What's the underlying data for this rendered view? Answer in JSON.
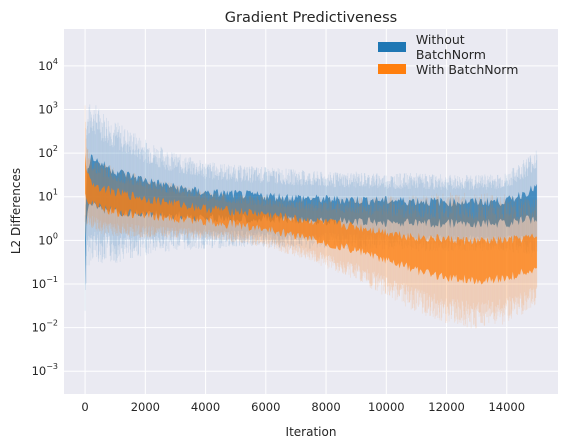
{
  "chart_data": {
    "type": "area",
    "title": "Gradient Predictiveness",
    "xlabel": "Iteration",
    "ylabel": "L2 Differences",
    "xlim": [
      -700,
      15700
    ],
    "ylim": [
      0.0003,
      70000
    ],
    "yscale": "log",
    "x_ticks": [
      0,
      2000,
      4000,
      6000,
      8000,
      10000,
      12000,
      14000
    ],
    "y_ticks": [
      0.001,
      0.01,
      0.1,
      1,
      10,
      100,
      1000,
      10000
    ],
    "y_tick_labels": [
      {
        "base": "10",
        "exp": "−3"
      },
      {
        "base": "10",
        "exp": "−2"
      },
      {
        "base": "10",
        "exp": "−1"
      },
      {
        "base": "10",
        "exp": "0"
      },
      {
        "base": "10",
        "exp": "1"
      },
      {
        "base": "10",
        "exp": "2"
      },
      {
        "base": "10",
        "exp": "3"
      },
      {
        "base": "10",
        "exp": "4"
      }
    ],
    "grid": true,
    "legend_position": "top-right",
    "series": [
      {
        "name": "Without BatchNorm",
        "color": "#1f77b4",
        "x": [
          0,
          50,
          200,
          500,
          1000,
          2000,
          3000,
          4000,
          5000,
          6000,
          7000,
          8000,
          9000,
          10000,
          11000,
          12000,
          13000,
          14000,
          15000
        ],
        "low": [
          0.05,
          1.0,
          2.0,
          1.6,
          1.4,
          1.6,
          1.7,
          1.6,
          1.7,
          1.6,
          1.5,
          1.5,
          1.4,
          1.4,
          1.3,
          1.3,
          1.3,
          1.3,
          1.3
        ],
        "high": [
          2.0,
          150,
          300,
          200,
          120,
          60,
          35,
          25,
          22,
          20,
          18,
          16,
          16,
          15,
          15,
          14,
          14,
          15,
          40
        ]
      },
      {
        "name": "With BatchNorm",
        "color": "#ff7f0e",
        "x": [
          0,
          50,
          200,
          500,
          1000,
          2000,
          3000,
          4000,
          5000,
          6000,
          7000,
          8000,
          9000,
          10000,
          11000,
          12000,
          13000,
          14000,
          15000
        ],
        "low": [
          4,
          5,
          4,
          3,
          2.6,
          2.2,
          2.0,
          1.8,
          1.5,
          1.2,
          0.8,
          0.5,
          0.3,
          0.15,
          0.08,
          0.05,
          0.04,
          0.05,
          0.1
        ],
        "high": [
          300,
          60,
          40,
          30,
          22,
          15,
          11,
          8,
          7,
          6,
          5,
          4.5,
          4,
          3.5,
          3,
          3,
          2.8,
          2.8,
          2.8
        ]
      }
    ]
  }
}
